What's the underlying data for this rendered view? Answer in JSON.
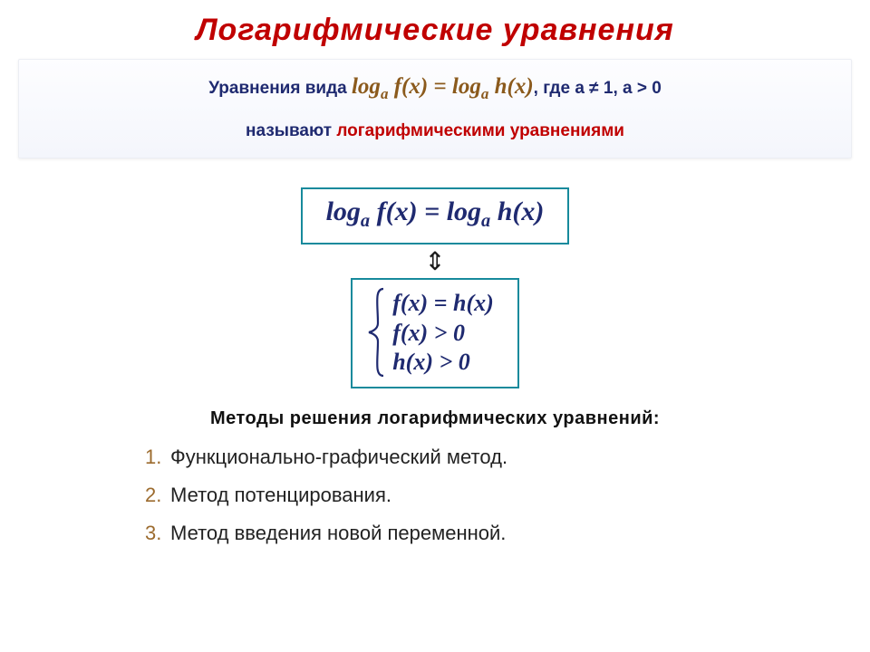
{
  "title": {
    "text": "Логарифмические уравнения",
    "color": "#c00000",
    "fontsize": 34
  },
  "definition": {
    "prefix": "Уравнения вида ",
    "formula_html": "log<sub>a</sub> f(x) = log<sub>a</sub> h(x)",
    "suffix": ", где a ≠ 1, a > 0",
    "line2_prefix": "называют ",
    "line2_highlight": "логарифмическими уравнениями",
    "text_color": "#1f2a70",
    "highlight_color": "#c00000",
    "formula_color": "#8b5a1c",
    "fontsize": 19,
    "formula_fontsize": 25
  },
  "main_formula": {
    "html": "log<sub>a</sub> f(x) = log<sub>a</sub> h(x)",
    "color": "#1f2a70",
    "fontsize": 30,
    "border_color": "#178a9c"
  },
  "arrow": {
    "glyph": "⇕",
    "fontsize": 28,
    "color": "#1a1a1a"
  },
  "system": {
    "lines": [
      "f(x) = h(x)",
      "f(x) > 0",
      "h(x) > 0"
    ],
    "color": "#1f2a70",
    "fontsize": 26,
    "border_color": "#178a9c",
    "brace_color": "#1f2a70"
  },
  "methods": {
    "title": "Методы решения логарифмических уравнений:",
    "title_fontsize": 20,
    "title_color": "#111111",
    "items": [
      "Функционально-графический метод.",
      "Метод потенцирования.",
      "Метод введения новой переменной."
    ],
    "item_fontsize": 22,
    "item_color": "#222222",
    "num_color": "#9c6b2e"
  },
  "background_color": "#ffffff"
}
